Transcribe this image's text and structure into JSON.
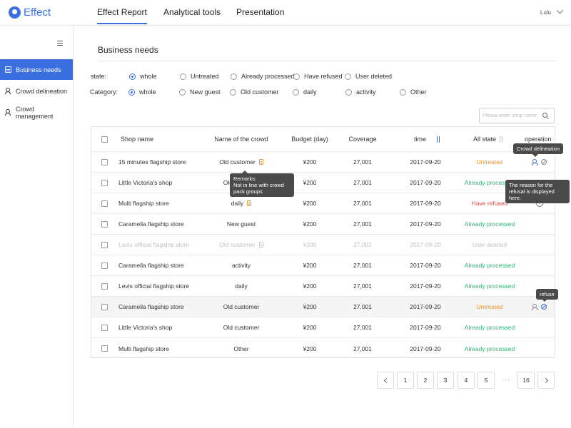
{
  "app": {
    "name": "Effect"
  },
  "nav": {
    "tabs": [
      "Effect Report",
      "Analytical tools",
      "Presentation"
    ],
    "active": "Effect Report"
  },
  "user": {
    "name": "Lulu"
  },
  "sidebar": {
    "items": [
      {
        "label": "Business needs",
        "icon": "doc-icon",
        "active": true
      },
      {
        "label": "Crowd delineation",
        "icon": "people-icon",
        "active": false
      },
      {
        "label": "Crowd management",
        "icon": "people-settings-icon",
        "active": false
      }
    ]
  },
  "page": {
    "title": "Business needs"
  },
  "filters": {
    "state": {
      "label": "state:",
      "options": [
        "whole",
        "Untreated",
        "Already processed",
        "Have refused",
        "User deleted"
      ],
      "selected": "whole"
    },
    "category": {
      "label": "Category:",
      "options": [
        "whole",
        "New guest",
        "Old customer",
        "daily",
        "activity",
        "Other"
      ],
      "selected": "whole"
    }
  },
  "search": {
    "placeholder": "Please enter shop name."
  },
  "table": {
    "columns": [
      "Shop name",
      "Name of the crowd",
      "Budget (day)",
      "Coverage",
      "time",
      "All state",
      "operation"
    ],
    "rows": [
      {
        "shop": "15 minutes flagship store",
        "crowd": "Old customer",
        "budget": "¥200",
        "coverage": "27,001",
        "time": "2017-09-20",
        "state": "Untreated"
      },
      {
        "shop": "Little Victoria's shop",
        "crowd": "Old customer",
        "budget": "¥200",
        "coverage": "27,001",
        "time": "2017-09-20",
        "state": "Already processed"
      },
      {
        "shop": "Multi flagship store",
        "crowd": "daily",
        "budget": "¥200",
        "coverage": "27,001",
        "time": "2017-09-20",
        "state": "Have refused"
      },
      {
        "shop": "Caramella flagship store",
        "crowd": "New guest",
        "budget": "¥200",
        "coverage": "27,001",
        "time": "2017-09-20",
        "state": "Already processed"
      },
      {
        "shop": "Levis official flagship store",
        "crowd": "Old customer",
        "budget": "¥200",
        "coverage": "27,001",
        "time": "2017-09-20",
        "state": "User deleted"
      },
      {
        "shop": "Caramella flagship store",
        "crowd": "activity",
        "budget": "¥200",
        "coverage": "27,001",
        "time": "2017-09-20",
        "state": "Already processed"
      },
      {
        "shop": "Levis official flagship store",
        "crowd": "daily",
        "budget": "¥200",
        "coverage": "27,001",
        "time": "2017-09-20",
        "state": "Already processed"
      },
      {
        "shop": "Caramella flagship store",
        "crowd": "Old customer",
        "budget": "¥200",
        "coverage": "27,001",
        "time": "2017-09-20",
        "state": "Untreated"
      },
      {
        "shop": "Little Victoria's shop",
        "crowd": "Old customer",
        "budget": "¥200",
        "coverage": "27,001",
        "time": "2017-09-20",
        "state": "Already processed"
      },
      {
        "shop": "Multi flagship store",
        "crowd": "Other",
        "budget": "¥200",
        "coverage": "27,001",
        "time": "2017-09-20",
        "state": "Already processed"
      }
    ]
  },
  "state_colors": {
    "Untreated": "#e8952e",
    "Already processed": "#2bb673",
    "Have refused": "#e5433e",
    "User deleted": "#c0c0c0"
  },
  "tooltips": {
    "crowd_delineation": "Crowd delineation",
    "remarks_title": "Remarks:",
    "remarks_body": "Not in line with crowd pack groups",
    "refusal_reason": "The reason for the refusal is displayed here.",
    "refuse": "refuse"
  },
  "pagination": {
    "pages": [
      "1",
      "2",
      "3",
      "4",
      "5"
    ],
    "ellipsis": "···",
    "last": "16"
  },
  "colors": {
    "accent": "#3b6fe0"
  }
}
